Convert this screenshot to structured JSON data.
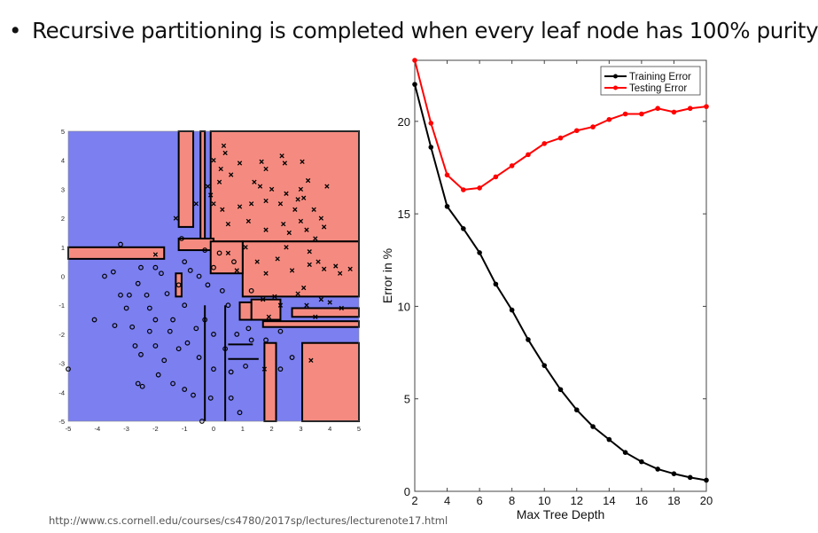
{
  "slide": {
    "bullet": "•",
    "title": "Recursive partitioning is completed when every leaf node has 100% purity",
    "url": "http://www.cs.cornell.edu/courses/cs4780/2017sp/lectures/lecturenote17.html"
  },
  "chart_data": [
    {
      "type": "scatter",
      "xlim": [
        -5,
        5
      ],
      "ylim": [
        -5,
        5
      ],
      "xticks": [
        "-5",
        "-4",
        "-3",
        "-2",
        "-1",
        "0",
        "1",
        "2",
        "3",
        "4",
        "5"
      ],
      "yticks": [
        "-5",
        "-4",
        "-3",
        "-2",
        "-1",
        "0",
        "1",
        "2",
        "3",
        "4",
        "5"
      ],
      "colors": {
        "class_o_region": "#7b7ff0",
        "class_x_region": "#f58b80",
        "boundary": "#000000"
      },
      "regions_class_x": [
        [
          -0.1,
          5,
          1.2,
          5
        ],
        [
          -1.2,
          -0.7,
          1.7,
          5
        ],
        [
          -0.45,
          -0.3,
          1.3,
          5
        ],
        [
          1.0,
          5,
          -0.7,
          1.2
        ],
        [
          -5,
          -1.7,
          0.6,
          1.0
        ],
        [
          3.05,
          5,
          -5,
          -2.3
        ],
        [
          1.75,
          2.15,
          -5,
          -2.3
        ],
        [
          1.7,
          5,
          -1.75,
          -1.55
        ],
        [
          2.7,
          5,
          -1.4,
          -1.1
        ],
        [
          -1.2,
          0,
          0.9,
          1.3
        ],
        [
          -0.1,
          1.0,
          0.1,
          1.2
        ],
        [
          1.3,
          2.3,
          -1.5,
          -0.8
        ],
        [
          -1.3,
          -1.1,
          -0.7,
          0.1
        ],
        [
          0.9,
          1.3,
          -1.5,
          -0.9
        ]
      ],
      "points_o": [
        [
          -3.2,
          1.1
        ],
        [
          -5,
          -3.2
        ],
        [
          -4.1,
          -1.5
        ],
        [
          -3.75,
          0
        ],
        [
          -3.45,
          0.15
        ],
        [
          -3.4,
          -1.7
        ],
        [
          -3.2,
          -0.65
        ],
        [
          -2.9,
          -0.65
        ],
        [
          -3,
          -1.1
        ],
        [
          -2.8,
          -1.75
        ],
        [
          -2.7,
          -2.4
        ],
        [
          -2.6,
          -3.7
        ],
        [
          -2.45,
          -3.8
        ],
        [
          -2.5,
          0.3
        ],
        [
          -2.6,
          -0.25
        ],
        [
          -2.3,
          -0.65
        ],
        [
          -2.2,
          -1.1
        ],
        [
          -2.0,
          -1.5
        ],
        [
          -2.0,
          -2.4
        ],
        [
          -1.9,
          -3.4
        ],
        [
          -2,
          0.3
        ],
        [
          -1.8,
          0.1
        ],
        [
          -1.6,
          -0.6
        ],
        [
          -1.4,
          -1.5
        ],
        [
          -1.4,
          -3.7
        ],
        [
          -1.2,
          -2.5
        ],
        [
          -1.0,
          -3.9
        ],
        [
          -0.7,
          -4.1
        ],
        [
          -0.4,
          -5
        ],
        [
          -0.1,
          -4.2
        ],
        [
          0.6,
          -4.2
        ],
        [
          0.9,
          -4.7
        ],
        [
          2.7,
          -2.8
        ],
        [
          2.3,
          -3.2
        ],
        [
          2.3,
          -1.9
        ],
        [
          1.8,
          -2.2
        ],
        [
          -1,
          0.5
        ],
        [
          -0.8,
          0.2
        ],
        [
          -0.5,
          0
        ],
        [
          -0.2,
          -0.3
        ],
        [
          0,
          0.3
        ],
        [
          0.3,
          -0.5
        ],
        [
          0.5,
          -1
        ],
        [
          -0.3,
          -1.5
        ],
        [
          -0.6,
          -1.8
        ],
        [
          0,
          -2
        ],
        [
          0.4,
          -2.5
        ],
        [
          0.8,
          -2
        ],
        [
          1.2,
          -1.8
        ],
        [
          -1,
          -1
        ],
        [
          -0.9,
          -2.3
        ],
        [
          -0.5,
          -2.8
        ],
        [
          0,
          -3.2
        ],
        [
          0.6,
          -3.3
        ],
        [
          1.1,
          -3.1
        ],
        [
          1.3,
          -2.2
        ],
        [
          -1.2,
          -0.3
        ],
        [
          0.2,
          0.8
        ],
        [
          -0.3,
          0.9
        ],
        [
          -1.7,
          -2.9
        ],
        [
          -1.5,
          -1.9
        ],
        [
          -2.2,
          -1.9
        ],
        [
          -2.5,
          -2.7
        ],
        [
          -1.1,
          1.3
        ],
        [
          0.7,
          0.5
        ],
        [
          1.3,
          -0.5
        ]
      ],
      "points_x": [
        [
          0.35,
          4.5
        ],
        [
          0.4,
          4.25
        ],
        [
          0,
          4
        ],
        [
          0.9,
          3.9
        ],
        [
          1.65,
          3.95
        ],
        [
          1.8,
          3.7
        ],
        [
          2.35,
          4.15
        ],
        [
          2.45,
          3.9
        ],
        [
          3.05,
          3.95
        ],
        [
          3.25,
          3.3
        ],
        [
          3.9,
          3.1
        ],
        [
          0.25,
          3.7
        ],
        [
          0.6,
          3.5
        ],
        [
          0.2,
          3.25
        ],
        [
          1.4,
          3.25
        ],
        [
          1.6,
          3.1
        ],
        [
          2.0,
          3.0
        ],
        [
          2.5,
          2.85
        ],
        [
          3.0,
          3.0
        ],
        [
          2.9,
          2.65
        ],
        [
          3.1,
          2.7
        ],
        [
          3.45,
          2.3
        ],
        [
          3.7,
          2.0
        ],
        [
          3.8,
          1.7
        ],
        [
          -0.2,
          3.1
        ],
        [
          -0.1,
          2.8
        ],
        [
          0,
          2.5
        ],
        [
          0.3,
          2.3
        ],
        [
          0.9,
          2.4
        ],
        [
          1.3,
          2.5
        ],
        [
          1.8,
          2.6
        ],
        [
          2.3,
          2.5
        ],
        [
          2.8,
          2.3
        ],
        [
          3.0,
          1.9
        ],
        [
          3.2,
          1.6
        ],
        [
          3.5,
          1.3
        ],
        [
          0.5,
          1.8
        ],
        [
          1.2,
          1.9
        ],
        [
          1.8,
          1.6
        ],
        [
          2.4,
          1.8
        ],
        [
          2.6,
          1.5
        ],
        [
          3.3,
          0.85
        ],
        [
          3.3,
          0.4
        ],
        [
          3.6,
          0.5
        ],
        [
          3.8,
          0.25
        ],
        [
          4.2,
          0.35
        ],
        [
          4.35,
          0.1
        ],
        [
          4.7,
          0.25
        ],
        [
          2.1,
          -0.7
        ],
        [
          1.7,
          -0.8
        ],
        [
          2.3,
          -1
        ],
        [
          2.9,
          -0.6
        ],
        [
          3.1,
          -0.4
        ],
        [
          3.2,
          -1
        ],
        [
          3.7,
          -0.8
        ],
        [
          4,
          -0.9
        ],
        [
          4.4,
          -1.1
        ],
        [
          3.5,
          -1.4
        ],
        [
          3.35,
          -2.9
        ],
        [
          1.75,
          -3.2
        ],
        [
          -2,
          0.75
        ],
        [
          -1.3,
          2
        ],
        [
          -0.6,
          2.5
        ],
        [
          1.5,
          0.5
        ],
        [
          2.2,
          0.6
        ],
        [
          2.7,
          0.2
        ],
        [
          1.1,
          1.0
        ],
        [
          0.5,
          0.8
        ],
        [
          1.8,
          0.1
        ],
        [
          2.5,
          1.0
        ],
        [
          1.9,
          -1.4
        ],
        [
          0.8,
          0.2
        ]
      ]
    },
    {
      "type": "line",
      "xlabel": "Max Tree Depth",
      "ylabel": "Error in %",
      "xlim": [
        2,
        20
      ],
      "ylim": [
        0,
        23.3
      ],
      "xticks": [
        "2",
        "4",
        "6",
        "8",
        "10",
        "12",
        "14",
        "16",
        "18",
        "20"
      ],
      "yticks": [
        "0",
        "5",
        "10",
        "15",
        "20"
      ],
      "legend_position": "top-right",
      "x": [
        2,
        3,
        4,
        5,
        6,
        7,
        8,
        9,
        10,
        11,
        12,
        13,
        14,
        15,
        16,
        17,
        18,
        19,
        20
      ],
      "series": [
        {
          "name": "Training Error",
          "color": "#000000",
          "values": [
            22.0,
            18.6,
            15.4,
            14.2,
            12.9,
            11.2,
            9.8,
            8.2,
            6.8,
            5.5,
            4.4,
            3.5,
            2.8,
            2.1,
            1.6,
            1.2,
            0.95,
            0.75,
            0.6
          ]
        },
        {
          "name": "Testing Error",
          "color": "#ff0000",
          "values": [
            23.3,
            19.9,
            17.1,
            16.3,
            16.4,
            17.0,
            17.6,
            18.2,
            18.8,
            19.1,
            19.5,
            19.7,
            20.1,
            20.4,
            20.4,
            20.7,
            20.5,
            20.7,
            20.8
          ]
        }
      ]
    }
  ]
}
